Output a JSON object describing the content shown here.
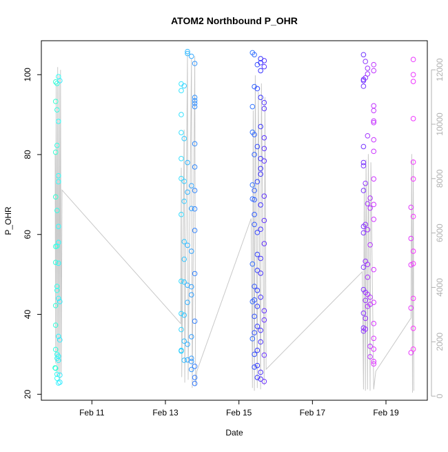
{
  "chart_data": {
    "type": "scatter",
    "title": "ATOM2 Northbound P_OHR",
    "xlabel": "Date",
    "ylabel": "P_OHR",
    "xlim": [
      "Feb 9 15:00",
      "Feb 20 03:00"
    ],
    "ylim": [
      18.5,
      108.5
    ],
    "x_ticks": [
      "Feb 11",
      "Feb 13",
      "Feb 15",
      "Feb 17",
      "Feb 19"
    ],
    "y_ticks": [
      20,
      40,
      60,
      80,
      100
    ],
    "y2_ticks": [
      0,
      2000,
      4000,
      6000,
      8000,
      10000,
      12000
    ],
    "y2lim": [
      -150,
      13070
    ],
    "grid": false,
    "point_color_hue_range": [
      165,
      300
    ],
    "line_color": "#c8c8c8",
    "y2_axis_color": "#b0b0b0",
    "scatter_series": [
      [
        "Feb 10 00:20",
        98.2
      ],
      [
        "Feb 10 01:15",
        97.8
      ],
      [
        "Feb 10 02:10",
        99.5
      ],
      [
        "Feb 10 03:05",
        98.5
      ],
      [
        "Feb 10 00:20",
        93.3
      ],
      [
        "Feb 10 01:15",
        91.2
      ],
      [
        "Feb 10 02:10",
        88.3
      ],
      [
        "Feb 10 01:15",
        82.3
      ],
      [
        "Feb 10 00:20",
        80.6
      ],
      [
        "Feb 10 02:10",
        74.7
      ],
      [
        "Feb 10 02:10",
        73.2
      ],
      [
        "Feb 10 00:20",
        69.4
      ],
      [
        "Feb 10 01:15",
        66.0
      ],
      [
        "Feb 10 02:10",
        62.0
      ],
      [
        "Feb 10 02:10",
        58.0
      ],
      [
        "Feb 10 00:20",
        57.0
      ],
      [
        "Feb 10 01:15",
        57.1
      ],
      [
        "Feb 10 00:20",
        53.0
      ],
      [
        "Feb 10 02:10",
        52.8
      ],
      [
        "Feb 10 01:15",
        47.0
      ],
      [
        "Feb 10 01:15",
        46.0
      ],
      [
        "Feb 10 02:10",
        44.0
      ],
      [
        "Feb 10 03:05",
        43.2
      ],
      [
        "Feb 10 00:20",
        42.2
      ],
      [
        "Feb 10 00:20",
        37.3
      ],
      [
        "Feb 10 02:10",
        34.5
      ],
      [
        "Feb 10 03:05",
        33.6
      ],
      [
        "Feb 10 00:20",
        31.2
      ],
      [
        "Feb 10 01:15",
        30.0
      ],
      [
        "Feb 10 02:10",
        29.5
      ],
      [
        "Feb 10 01:15",
        29.0
      ],
      [
        "Feb 10 02:10",
        28.5
      ],
      [
        "Feb 10 00:00",
        26.6
      ],
      [
        "Feb 10 00:20",
        26.5
      ],
      [
        "Feb 10 01:15",
        25.0
      ],
      [
        "Feb 10 03:05",
        24.8
      ],
      [
        "Feb 10 01:15",
        24.0
      ],
      [
        "Feb 10 03:05",
        23.0
      ],
      [
        "Feb 10 02:10",
        22.8
      ],
      [
        "Feb 13 14:25",
        105.8
      ],
      [
        "Feb 13 14:25",
        105.3
      ],
      [
        "Feb 13 17:00",
        104.6
      ],
      [
        "Feb 13 19:10",
        102.8
      ],
      [
        "Feb 13 10:20",
        97.7
      ],
      [
        "Feb 13 12:15",
        97.2
      ],
      [
        "Feb 13 10:20",
        96.0
      ],
      [
        "Feb 13 19:10",
        94.3
      ],
      [
        "Feb 13 19:10",
        93.5
      ],
      [
        "Feb 13 19:10",
        92.8
      ],
      [
        "Feb 13 19:10",
        92.0
      ],
      [
        "Feb 13 10:20",
        90.0
      ],
      [
        "Feb 13 10:20",
        85.5
      ],
      [
        "Feb 13 12:15",
        84.0
      ],
      [
        "Feb 13 19:10",
        82.7
      ],
      [
        "Feb 13 10:20",
        79.0
      ],
      [
        "Feb 13 14:25",
        78.0
      ],
      [
        "Feb 13 19:10",
        76.9
      ],
      [
        "Feb 13 10:20",
        74.0
      ],
      [
        "Feb 13 12:15",
        73.3
      ],
      [
        "Feb 13 17:00",
        72.2
      ],
      [
        "Feb 13 19:10",
        71.0
      ],
      [
        "Feb 13 14:25",
        70.6
      ],
      [
        "Feb 13 12:15",
        68.3
      ],
      [
        "Feb 13 17:00",
        66.5
      ],
      [
        "Feb 13 19:10",
        66.4
      ],
      [
        "Feb 13 10:20",
        65.0
      ],
      [
        "Feb 13 19:10",
        61.0
      ],
      [
        "Feb 13 12:15",
        58.2
      ],
      [
        "Feb 13 14:25",
        57.3
      ],
      [
        "Feb 13 17:00",
        55.8
      ],
      [
        "Feb 13 12:15",
        53.8
      ],
      [
        "Feb 13 19:10",
        50.2
      ],
      [
        "Feb 13 10:20",
        48.3
      ],
      [
        "Feb 13 12:15",
        48.1
      ],
      [
        "Feb 13 14:25",
        47.3
      ],
      [
        "Feb 13 17:00",
        46.9
      ],
      [
        "Feb 13 17:00",
        44.9
      ],
      [
        "Feb 13 14:25",
        43.0
      ],
      [
        "Feb 13 10:20",
        40.2
      ],
      [
        "Feb 13 12:15",
        39.8
      ],
      [
        "Feb 13 19:10",
        38.3
      ],
      [
        "Feb 13 10:20",
        36.2
      ],
      [
        "Feb 13 17:00",
        34.4
      ],
      [
        "Feb 13 12:15",
        33.3
      ],
      [
        "Feb 13 14:25",
        32.5
      ],
      [
        "Feb 13 10:20",
        31.0
      ],
      [
        "Feb 13 10:20",
        30.8
      ],
      [
        "Feb 13 17:00",
        29.0
      ],
      [
        "Feb 13 12:15",
        28.5
      ],
      [
        "Feb 13 14:25",
        28.6
      ],
      [
        "Feb 13 17:00",
        28.2
      ],
      [
        "Feb 13 19:10",
        27.0
      ],
      [
        "Feb 13 17:00",
        26.2
      ],
      [
        "Feb 13 19:10",
        24.2
      ],
      [
        "Feb 13 19:10",
        22.7
      ],
      [
        "Feb 15 08:50",
        105.5
      ],
      [
        "Feb 15 10:05",
        105.0
      ],
      [
        "Feb 15 14:10",
        104.0
      ],
      [
        "Feb 15 16:30",
        103.5
      ],
      [
        "Feb 15 14:10",
        103.0
      ],
      [
        "Feb 15 12:00",
        102.5
      ],
      [
        "Feb 15 16:30",
        102.0
      ],
      [
        "Feb 15 14:10",
        101.0
      ],
      [
        "Feb 15 10:05",
        97.0
      ],
      [
        "Feb 15 12:00",
        96.5
      ],
      [
        "Feb 15 14:10",
        94.3
      ],
      [
        "Feb 15 16:30",
        93.0
      ],
      [
        "Feb 15 08:50",
        92.0
      ],
      [
        "Feb 15 16:30",
        91.5
      ],
      [
        "Feb 15 14:10",
        87.0
      ],
      [
        "Feb 15 08:50",
        85.6
      ],
      [
        "Feb 15 10:05",
        85.0
      ],
      [
        "Feb 15 16:30",
        84.2
      ],
      [
        "Feb 15 12:00",
        82.0
      ],
      [
        "Feb 15 16:30",
        81.5
      ],
      [
        "Feb 15 10:05",
        80.0
      ],
      [
        "Feb 15 14:10",
        79.0
      ],
      [
        "Feb 15 16:30",
        78.4
      ],
      [
        "Feb 15 14:10",
        76.5
      ],
      [
        "Feb 15 14:10",
        75.1
      ],
      [
        "Feb 15 12:00",
        73.2
      ],
      [
        "Feb 15 08:50",
        72.4
      ],
      [
        "Feb 15 10:05",
        71.0
      ],
      [
        "Feb 15 16:30",
        69.6
      ],
      [
        "Feb 15 08:50",
        68.9
      ],
      [
        "Feb 15 10:05",
        68.7
      ],
      [
        "Feb 15 14:10",
        67.4
      ],
      [
        "Feb 15 10:05",
        65.0
      ],
      [
        "Feb 15 16:30",
        63.5
      ],
      [
        "Feb 15 10:05",
        62.5
      ],
      [
        "Feb 15 14:10",
        61.3
      ],
      [
        "Feb 15 12:00",
        60.5
      ],
      [
        "Feb 15 16:30",
        57.7
      ],
      [
        "Feb 15 12:00",
        55.0
      ],
      [
        "Feb 15 14:10",
        54.0
      ],
      [
        "Feb 15 08:50",
        52.6
      ],
      [
        "Feb 15 12:00",
        51.0
      ],
      [
        "Feb 15 14:10",
        50.3
      ],
      [
        "Feb 15 10:05",
        47.0
      ],
      [
        "Feb 15 12:00",
        46.0
      ],
      [
        "Feb 15 14:10",
        44.3
      ],
      [
        "Feb 15 10:05",
        43.6
      ],
      [
        "Feb 15 08:50",
        43.2
      ],
      [
        "Feb 15 12:00",
        42.0
      ],
      [
        "Feb 15 16:30",
        40.9
      ],
      [
        "Feb 15 10:05",
        39.5
      ],
      [
        "Feb 15 16:30",
        38.6
      ],
      [
        "Feb 15 12:00",
        37.0
      ],
      [
        "Feb 15 14:10",
        36.0
      ],
      [
        "Feb 15 10:05",
        35.4
      ],
      [
        "Feb 15 08:50",
        33.9
      ],
      [
        "Feb 15 14:10",
        33.1
      ],
      [
        "Feb 15 12:00",
        31.0
      ],
      [
        "Feb 15 10:05",
        30.0
      ],
      [
        "Feb 15 16:30",
        29.8
      ],
      [
        "Feb 15 12:00",
        27.2
      ],
      [
        "Feb 15 10:05",
        26.8
      ],
      [
        "Feb 15 14:10",
        25.5
      ],
      [
        "Feb 15 12:00",
        24.2
      ],
      [
        "Feb 15 14:10",
        23.8
      ],
      [
        "Feb 15 16:30",
        23.2
      ],
      [
        "Feb 18 09:20",
        105.0
      ],
      [
        "Feb 18 10:35",
        103.3
      ],
      [
        "Feb 18 16:00",
        102.5
      ],
      [
        "Feb 18 12:00",
        101.6
      ],
      [
        "Feb 18 16:00",
        101.0
      ],
      [
        "Feb 18 12:00",
        100.2
      ],
      [
        "Feb 18 10:35",
        99.2
      ],
      [
        "Feb 18 09:20",
        98.8
      ],
      [
        "Feb 18 09:20",
        98.5
      ],
      [
        "Feb 18 09:20",
        97.1
      ],
      [
        "Feb 18 16:00",
        92.2
      ],
      [
        "Feb 18 16:00",
        91.0
      ],
      [
        "Feb 18 16:00",
        88.4
      ],
      [
        "Feb 18 16:00",
        88.0
      ],
      [
        "Feb 18 12:00",
        84.7
      ],
      [
        "Feb 18 16:00",
        83.7
      ],
      [
        "Feb 18 09:20",
        82.0
      ],
      [
        "Feb 18 16:00",
        80.8
      ],
      [
        "Feb 18 09:20",
        78.0
      ],
      [
        "Feb 18 09:20",
        77.2
      ],
      [
        "Feb 18 16:00",
        73.9
      ],
      [
        "Feb 18 10:35",
        72.8
      ],
      [
        "Feb 18 09:20",
        71.0
      ],
      [
        "Feb 18 13:40",
        69.1
      ],
      [
        "Feb 18 12:00",
        67.7
      ],
      [
        "Feb 18 16:00",
        67.5
      ],
      [
        "Feb 18 13:40",
        66.6
      ],
      [
        "Feb 18 16:00",
        63.8
      ],
      [
        "Feb 18 10:35",
        62.5
      ],
      [
        "Feb 18 09:20",
        62.0
      ],
      [
        "Feb 18 12:00",
        61.2
      ],
      [
        "Feb 18 09:20",
        60.4
      ],
      [
        "Feb 18 13:40",
        57.4
      ],
      [
        "Feb 18 10:35",
        53.3
      ],
      [
        "Feb 18 12:00",
        52.5
      ],
      [
        "Feb 18 09:20",
        51.8
      ],
      [
        "Feb 18 16:00",
        51.2
      ],
      [
        "Feb 18 12:00",
        49.3
      ],
      [
        "Feb 18 09:20",
        46.2
      ],
      [
        "Feb 18 10:35",
        45.5
      ],
      [
        "Feb 18 12:00",
        45.0
      ],
      [
        "Feb 18 13:40",
        44.3
      ],
      [
        "Feb 18 10:35",
        43.5
      ],
      [
        "Feb 18 16:00",
        43.0
      ],
      [
        "Feb 18 13:40",
        42.5
      ],
      [
        "Feb 18 12:00",
        42.0
      ],
      [
        "Feb 18 09:20",
        40.3
      ],
      [
        "Feb 18 10:35",
        39.0
      ],
      [
        "Feb 18 16:00",
        37.7
      ],
      [
        "Feb 18 09:20",
        36.6
      ],
      [
        "Feb 18 10:35",
        36.3
      ],
      [
        "Feb 18 09:20",
        35.8
      ],
      [
        "Feb 18 16:00",
        34.0
      ],
      [
        "Feb 18 13:40",
        32.0
      ],
      [
        "Feb 18 16:00",
        31.3
      ],
      [
        "Feb 18 13:40",
        29.4
      ],
      [
        "Feb 18 16:00",
        28.2
      ],
      [
        "Feb 18 16:00",
        27.6
      ],
      [
        "Feb 19 17:50",
        103.8
      ],
      [
        "Feb 19 17:50",
        100.0
      ],
      [
        "Feb 19 17:50",
        98.3
      ],
      [
        "Feb 19 17:50",
        89.0
      ],
      [
        "Feb 19 17:50",
        78.1
      ],
      [
        "Feb 19 17:50",
        73.9
      ],
      [
        "Feb 19 16:20",
        66.8
      ],
      [
        "Feb 19 17:50",
        64.5
      ],
      [
        "Feb 19 16:20",
        59.0
      ],
      [
        "Feb 19 17:50",
        55.8
      ],
      [
        "Feb 19 17:50",
        52.7
      ],
      [
        "Feb 19 16:20",
        52.4
      ],
      [
        "Feb 19 17:50",
        44.0
      ],
      [
        "Feb 19 16:20",
        41.6
      ],
      [
        "Feb 19 17:50",
        36.5
      ],
      [
        "Feb 19 17:50",
        31.3
      ],
      [
        "Feb 19 16:20",
        30.4
      ]
    ],
    "line_series_y2": [
      [
        "Feb 10 00:00",
        8900
      ],
      [
        "Feb 10 00:20",
        1200
      ],
      [
        "Feb 10 00:40",
        11500
      ],
      [
        "Feb 10 01:15",
        700
      ],
      [
        "Feb 10 01:40",
        12100
      ],
      [
        "Feb 10 02:10",
        900
      ],
      [
        "Feb 10 02:40",
        11800
      ],
      [
        "Feb 10 03:05",
        600
      ],
      [
        "Feb 10 03:30",
        12000
      ],
      [
        "Feb 10 04:00",
        800
      ],
      [
        "Feb 10 04:30",
        7580
      ],
      [
        "Feb 13 10:00",
        2670
      ],
      [
        "Feb 13 10:20",
        8400
      ],
      [
        "Feb 13 10:40",
        700
      ],
      [
        "Feb 13 12:15",
        9800
      ],
      [
        "Feb 13 12:40",
        500
      ],
      [
        "Feb 13 14:25",
        12600
      ],
      [
        "Feb 13 14:50",
        600
      ],
      [
        "Feb 13 17:00",
        12400
      ],
      [
        "Feb 13 17:30",
        300
      ],
      [
        "Feb 13 19:10",
        12500
      ],
      [
        "Feb 13 19:40",
        400
      ],
      [
        "Feb 13 20:30",
        915
      ],
      [
        "Feb 15 08:00",
        6535
      ],
      [
        "Feb 15 08:50",
        300
      ],
      [
        "Feb 15 09:20",
        10500
      ],
      [
        "Feb 15 10:05",
        200
      ],
      [
        "Feb 15 10:40",
        11800
      ],
      [
        "Feb 15 12:00",
        300
      ],
      [
        "Feb 15 12:40",
        11200
      ],
      [
        "Feb 15 14:10",
        250
      ],
      [
        "Feb 15 14:40",
        11500
      ],
      [
        "Feb 15 16:30",
        400
      ],
      [
        "Feb 15 17:00",
        11000
      ],
      [
        "Feb 15 17:45",
        990
      ],
      [
        "Feb 18 08:30",
        4575
      ],
      [
        "Feb 18 09:20",
        250
      ],
      [
        "Feb 18 09:50",
        7800
      ],
      [
        "Feb 18 10:35",
        200
      ],
      [
        "Feb 18 11:00",
        8700
      ],
      [
        "Feb 18 12:00",
        250
      ],
      [
        "Feb 18 12:30",
        8900
      ],
      [
        "Feb 18 13:40",
        200
      ],
      [
        "Feb 18 14:10",
        8600
      ],
      [
        "Feb 18 16:00",
        250
      ],
      [
        "Feb 18 17:20",
        915
      ],
      [
        "Feb 19 16:20",
        2875
      ],
      [
        "Feb 19 16:50",
        8900
      ],
      [
        "Feb 19 17:20",
        130
      ],
      [
        "Feb 19 17:50",
        8700
      ],
      [
        "Feb 19 18:10",
        200
      ]
    ]
  }
}
